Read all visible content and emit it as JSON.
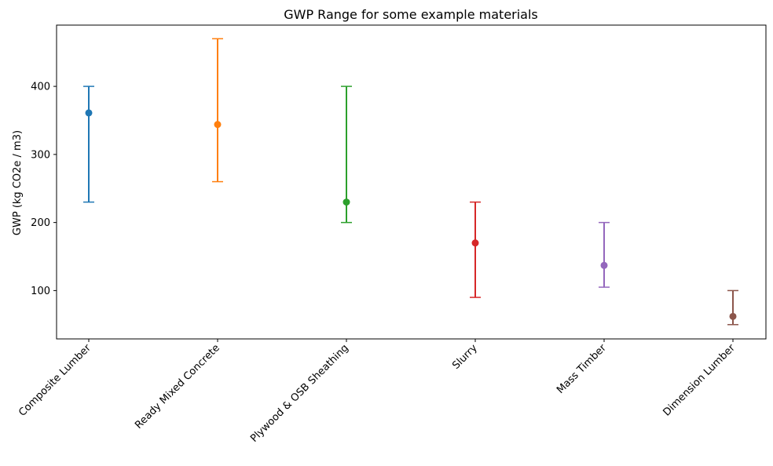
{
  "chart_data": {
    "type": "errorbar",
    "title": "GWP Range for some example materials",
    "xlabel": "",
    "ylabel": "GWP (kg CO2e / m3)",
    "ylim": [
      29,
      490
    ],
    "yticks": [
      100,
      200,
      300,
      400
    ],
    "grid": false,
    "categories": [
      "Composite Lumber",
      "Ready Mixed Concrete",
      "Plywood & OSB Sheathing",
      "Slurry",
      "Mass Timber",
      "Dimension Lumber"
    ],
    "series": [
      {
        "category": "Composite Lumber",
        "value": 361,
        "min": 230,
        "max": 400,
        "color": "#1f77b4"
      },
      {
        "category": "Ready Mixed Concrete",
        "value": 344,
        "min": 260,
        "max": 470,
        "color": "#ff7f0e"
      },
      {
        "category": "Plywood & OSB Sheathing",
        "value": 230,
        "min": 200,
        "max": 400,
        "color": "#2ca02c"
      },
      {
        "category": "Slurry",
        "value": 170,
        "min": 90,
        "max": 230,
        "color": "#d62728"
      },
      {
        "category": "Mass Timber",
        "value": 137,
        "min": 105,
        "max": 200,
        "color": "#9467bd"
      },
      {
        "category": "Dimension Lumber",
        "value": 62,
        "min": 50,
        "max": 100,
        "color": "#8c564b"
      }
    ]
  }
}
